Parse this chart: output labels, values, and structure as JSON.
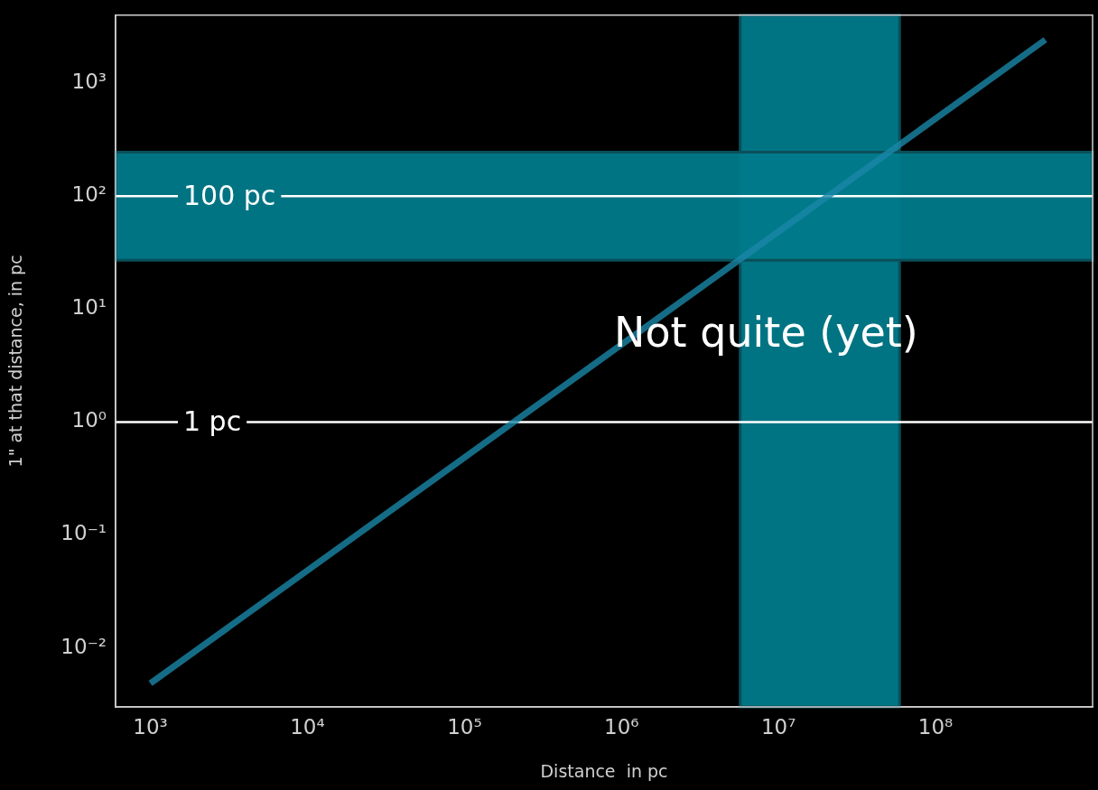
{
  "chart_data": {
    "type": "line",
    "xlabel": "Distance  in pc",
    "ylabel": "1\" at that distance, in pc",
    "log": "xy",
    "x": [
      1000,
      500000000
    ],
    "series": [
      {
        "color": "#1a87a8",
        "values": [
          0.004848,
          2424
        ]
      }
    ],
    "xlim": [
      600,
      1000000000
    ],
    "ylim": [
      0.003,
      4000
    ],
    "xticks": [
      {
        "value": 1000,
        "label": "10³"
      },
      {
        "value": 10000,
        "label": "10⁴"
      },
      {
        "value": 100000,
        "label": "10⁵"
      },
      {
        "value": 1000000,
        "label": "10⁶"
      },
      {
        "value": 10000000,
        "label": "10⁷"
      },
      {
        "value": 100000000,
        "label": "10⁸"
      }
    ],
    "yticks": [
      {
        "value": 0.01,
        "label": "10⁻²"
      },
      {
        "value": 0.1,
        "label": "10⁻¹"
      },
      {
        "value": 1,
        "label": "10⁰"
      },
      {
        "value": 10,
        "label": "10¹"
      },
      {
        "value": 100,
        "label": "10²"
      },
      {
        "value": 1000,
        "label": "10³"
      }
    ],
    "bands": [
      {
        "axis": "x",
        "from": 5700000,
        "to": 59000000,
        "color": "#007a8a"
      },
      {
        "axis": "y",
        "from": 27,
        "to": 245,
        "color": "#007a8a"
      }
    ],
    "ref_lines": [
      {
        "axis": "y",
        "value": 100,
        "label": "100 pc",
        "color": "#ffffff"
      },
      {
        "axis": "y",
        "value": 1,
        "label": "1 pc",
        "color": "#ffffff"
      }
    ],
    "annotations": [
      "Not quite (yet)"
    ],
    "grid": false,
    "legend": false,
    "marker": "none",
    "line_style": "solid"
  }
}
